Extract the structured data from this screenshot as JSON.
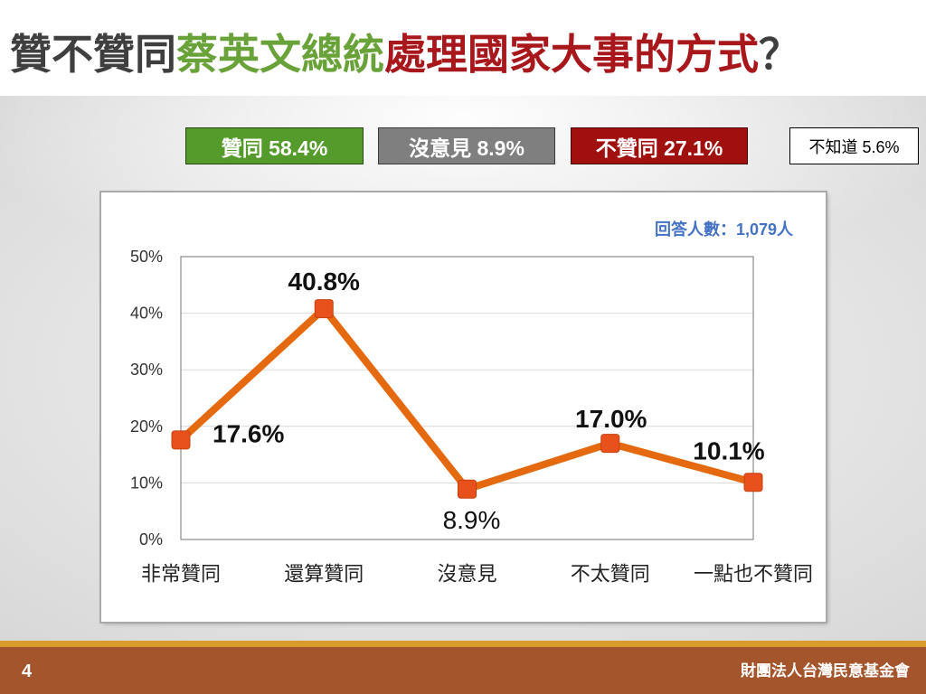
{
  "title": {
    "segments": [
      {
        "text": "贊不贊同",
        "color": "#3F3F3F"
      },
      {
        "text": "蔡英文總統",
        "color": "#6AA23A"
      },
      {
        "text": "處理國家大事的方式",
        "color": "#A8171B"
      },
      {
        "text": "？",
        "color": "#3F3F3F"
      }
    ]
  },
  "summary": [
    {
      "label": "贊同 58.4%",
      "fill": "#559B2B",
      "text_color": "#FFFFFF"
    },
    {
      "label": "沒意見 8.9%",
      "fill": "#7F7F7F",
      "text_color": "#FFFFFF"
    },
    {
      "label": "不贊同 27.1%",
      "fill": "#A0100F",
      "text_color": "#FFFFFF"
    },
    {
      "label": "不知道 5.6%",
      "fill": "#FFFFFF",
      "text_color": "#000000"
    }
  ],
  "respondents": {
    "text": "回答人數：1,079人",
    "color": "#4472C4"
  },
  "chart_data": {
    "type": "line",
    "categories": [
      "非常贊同",
      "還算贊同",
      "沒意見",
      "不太贊同",
      "一點也不贊同"
    ],
    "values": [
      17.6,
      40.8,
      8.9,
      17.0,
      10.1
    ],
    "value_labels": [
      "17.6%",
      "40.8%",
      "8.9%",
      "17.0%",
      "10.1%"
    ],
    "y_tick_labels": [
      "0%",
      "10%",
      "20%",
      "30%",
      "40%",
      "50%"
    ],
    "ylim": [
      0,
      50
    ],
    "grid": true,
    "line_color": "#E4690F",
    "marker_color": "#E8501C"
  },
  "footer": {
    "page_number": "4",
    "organization": "財團法人台灣民意基金會",
    "stripe_color": "#D99B2C",
    "band_color": "#A4552B"
  }
}
